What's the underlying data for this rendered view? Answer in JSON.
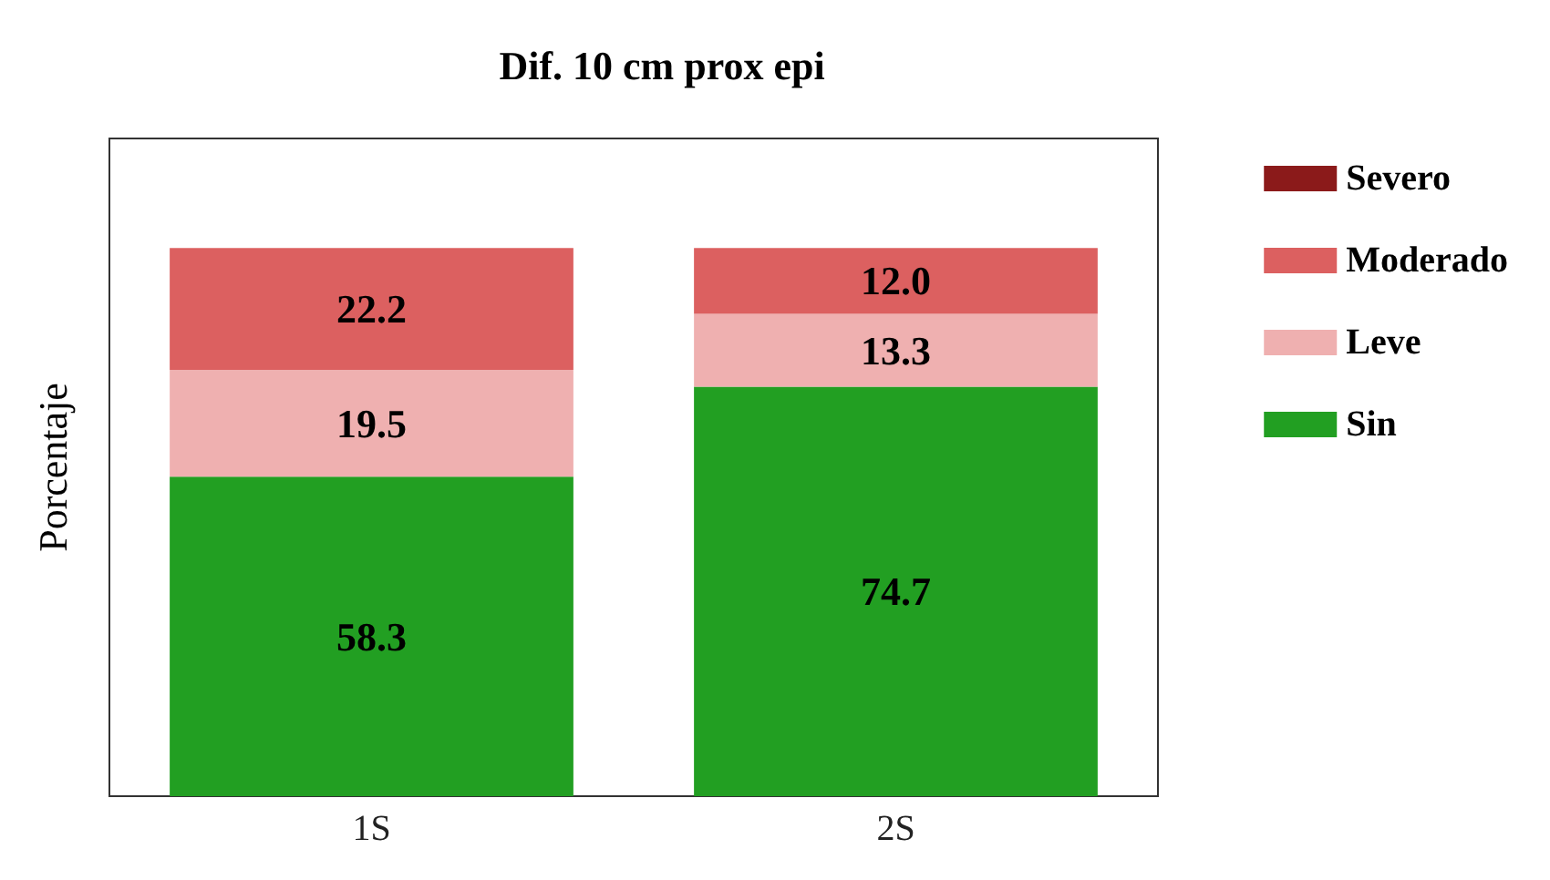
{
  "chart_data": {
    "type": "bar",
    "title": "Dif. 10 cm prox epi",
    "ylabel": "Porcentaje",
    "categories": [
      "1S",
      "2S"
    ],
    "stacked": true,
    "ylim": [
      0,
      120
    ],
    "tick_labels": "x",
    "grid": false,
    "legend": "right",
    "series": [
      {
        "name": "Sin",
        "color": "#229f22",
        "values": [
          58.3,
          74.7
        ],
        "value_labels": [
          "58.3",
          "74.7"
        ]
      },
      {
        "name": "Leve",
        "color": "#efb0b0",
        "values": [
          19.5,
          13.3
        ],
        "value_labels": [
          "19.5",
          "13.3"
        ]
      },
      {
        "name": "Moderado",
        "color": "#dc6060",
        "values": [
          22.2,
          12.0
        ],
        "value_labels": [
          "22.2",
          "12.0"
        ]
      },
      {
        "name": "Severo",
        "color": "#8b1a1a",
        "values": [
          0,
          0
        ],
        "value_labels": [
          null,
          null
        ]
      }
    ]
  }
}
